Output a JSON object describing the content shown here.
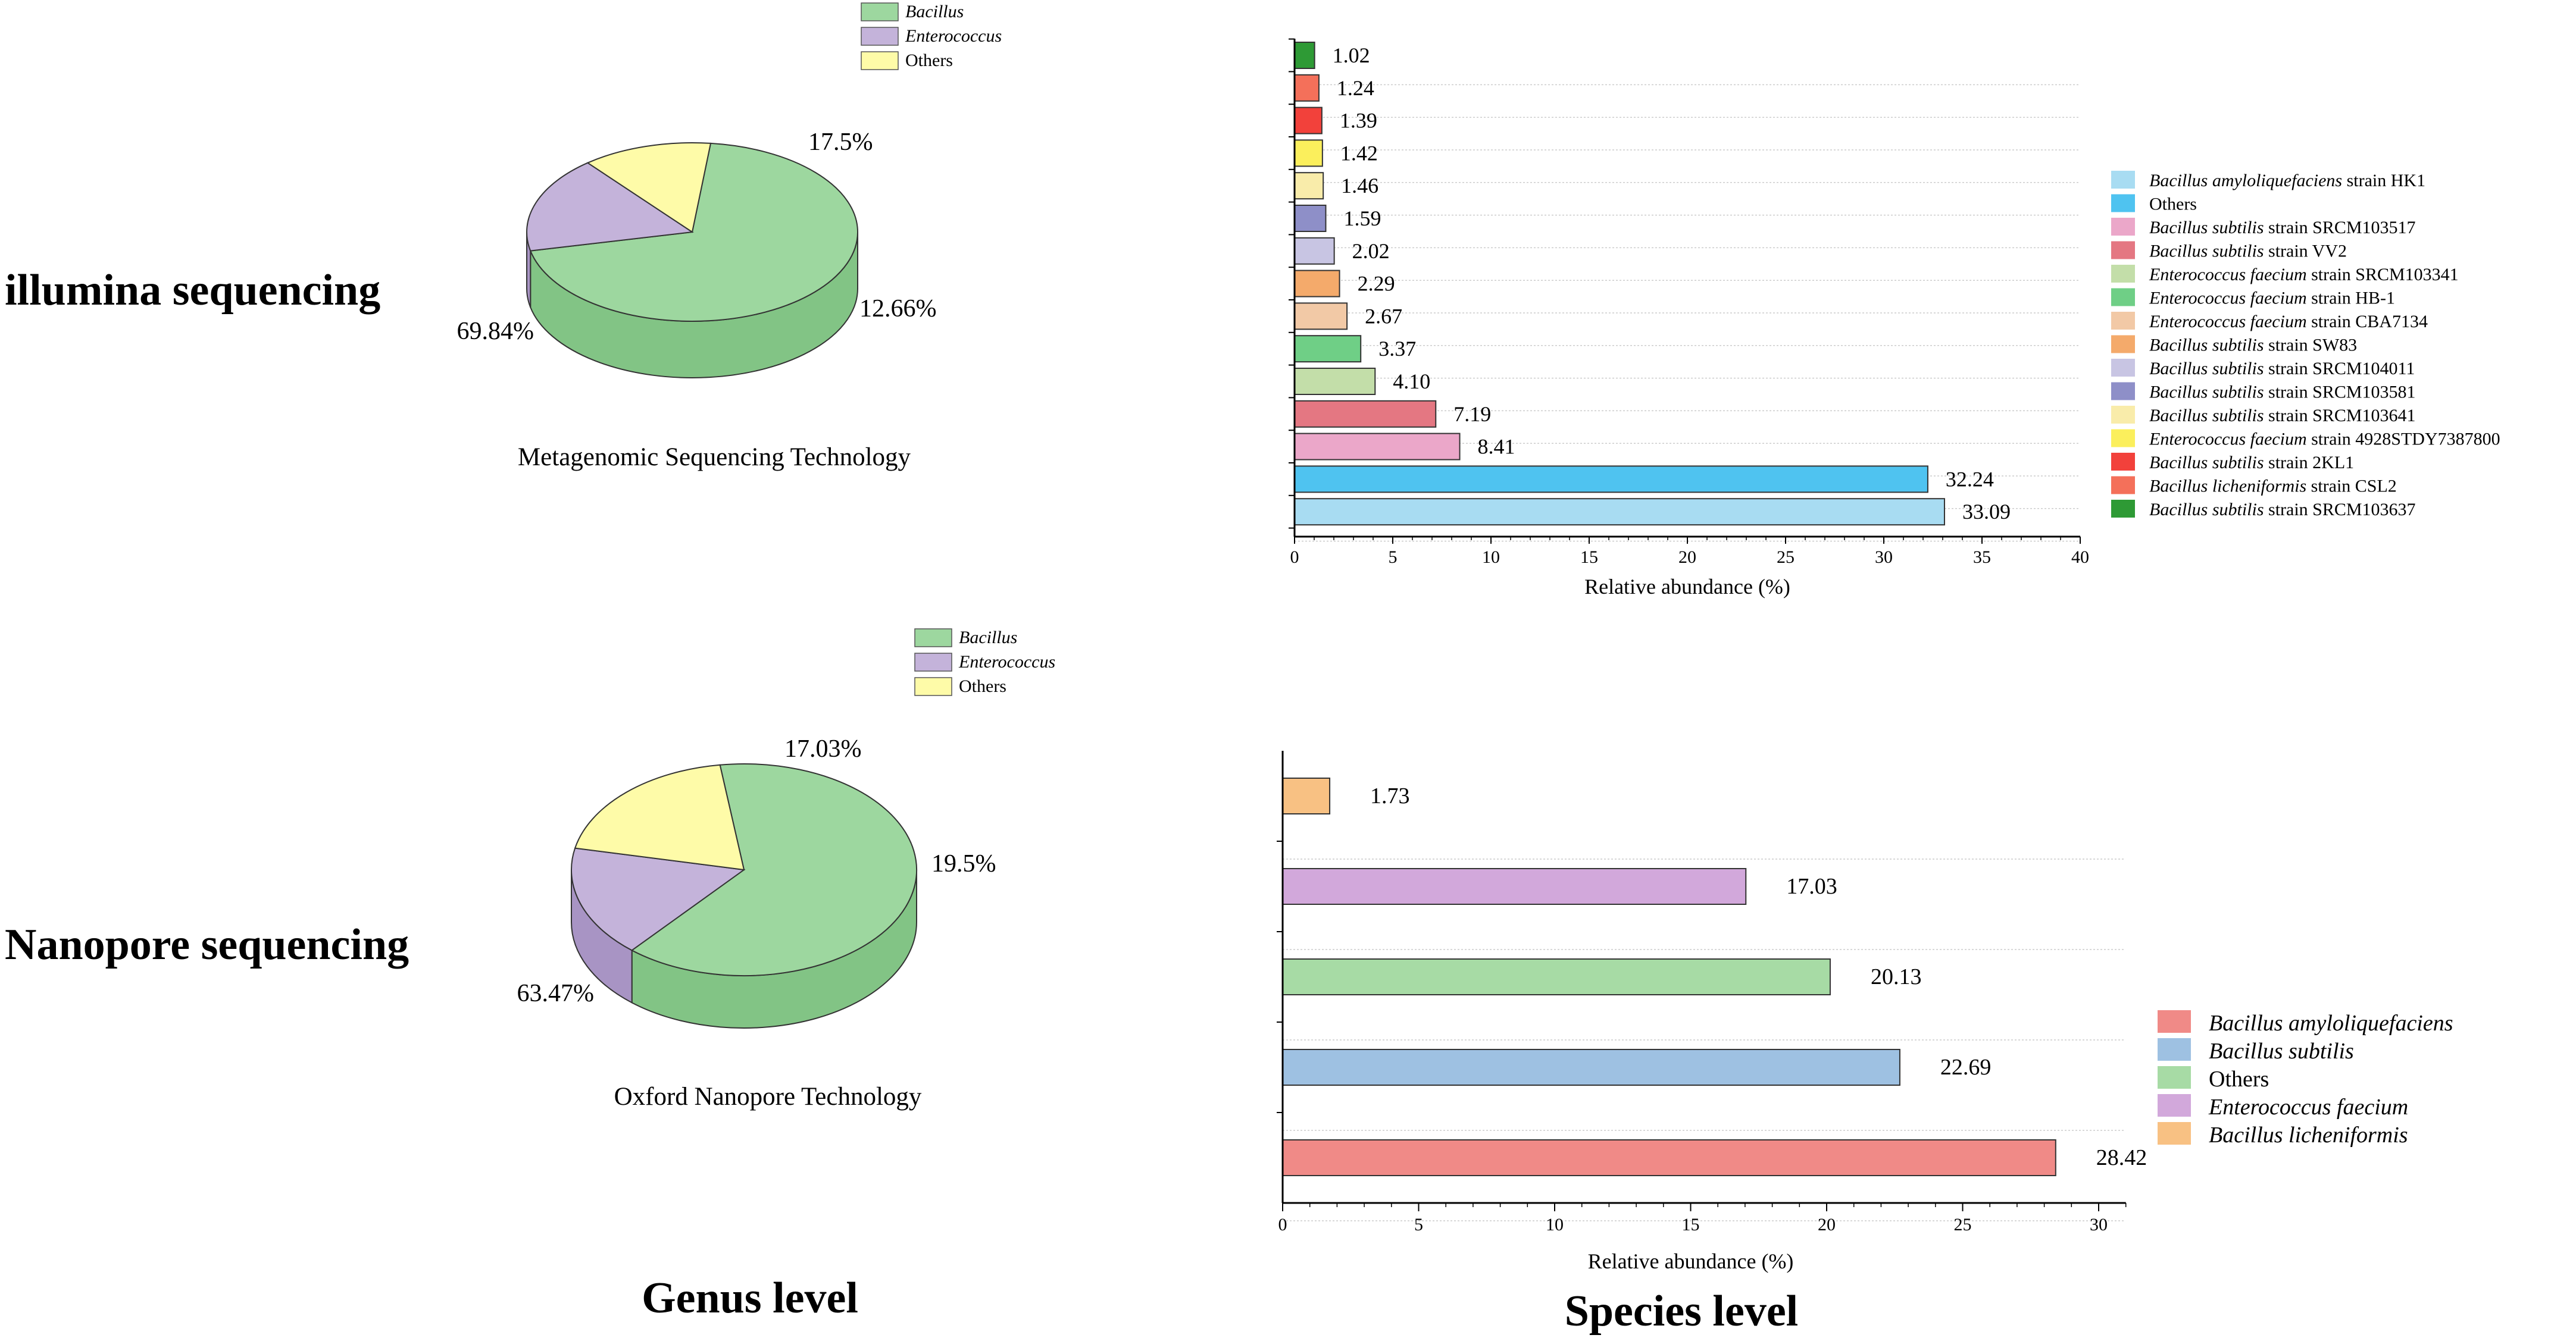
{
  "row_labels": {
    "illumina": "illumina sequencing",
    "nanopore": "Nanopore sequencing"
  },
  "footer_labels": {
    "genus": "Genus level",
    "species": "Species level"
  },
  "chart_data": [
    {
      "type": "pie",
      "title": "",
      "caption": "Metagenomic Sequencing Technology",
      "slices": [
        {
          "name": "Bacillus",
          "value": 69.84,
          "label": "69.84%",
          "italic": true,
          "color": "#9dd79f"
        },
        {
          "name": "Enterococcus",
          "value": 17.5,
          "label": "17.5%",
          "italic": true,
          "color": "#c4b3da"
        },
        {
          "name": "Others",
          "value": 12.66,
          "label": "12.66%",
          "italic": false,
          "color": "#fefba8"
        }
      ],
      "side_colors": [
        "#82c485",
        "#a894c4",
        "#f0ec83"
      ]
    },
    {
      "type": "bar",
      "orientation": "horizontal",
      "xlabel": "Relative abundance (%)",
      "xlim": [
        0,
        40
      ],
      "xticks": [
        0,
        5,
        10,
        15,
        20,
        25,
        30,
        35,
        40
      ],
      "legend_position": "right",
      "series": [
        {
          "species": "Bacillus amyloliquefaciens",
          "suffix": " strain HK1",
          "value": 33.09,
          "label": "33.09",
          "color": "#a8dcf2"
        },
        {
          "species": "",
          "suffix": "Others",
          "value": 32.24,
          "label": "32.24",
          "color": "#4fc3f0"
        },
        {
          "species": "Bacillus subtilis",
          "suffix": " strain SRCM103517",
          "value": 8.41,
          "label": "8.41",
          "color": "#eba7c9"
        },
        {
          "species": "Bacillus subtilis",
          "suffix": " strain VV2",
          "value": 7.19,
          "label": "7.19",
          "color": "#e47782"
        },
        {
          "species": "Enterococcus faecium",
          "suffix": " strain SRCM103341",
          "value": 4.1,
          "label": "4.10",
          "color": "#c3dea9"
        },
        {
          "species": "Enterococcus faecium",
          "suffix": " strain HB-1",
          "value": 3.37,
          "label": "3.37",
          "color": "#6fcf86"
        },
        {
          "species": "Enterococcus faecium",
          "suffix": " strain CBA7134",
          "value": 2.67,
          "label": "2.67",
          "color": "#f2c9a6"
        },
        {
          "species": "Bacillus subtilis",
          "suffix": " strain SW83",
          "value": 2.29,
          "label": "2.29",
          "color": "#f4aa6b"
        },
        {
          "species": "Bacillus subtilis",
          "suffix": " strain SRCM104011",
          "value": 2.02,
          "label": "2.02",
          "color": "#c8c5e3"
        },
        {
          "species": "Bacillus subtilis",
          "suffix": " strain SRCM103581",
          "value": 1.59,
          "label": "1.59",
          "color": "#8e8fc8"
        },
        {
          "species": "Bacillus subtilis",
          "suffix": " strain SRCM103641",
          "value": 1.46,
          "label": "1.46",
          "color": "#f9ecaa"
        },
        {
          "species": "Enterococcus faecium",
          "suffix": " strain 4928STDY7387800",
          "value": 1.42,
          "label": "1.42",
          "color": "#fbef5c"
        },
        {
          "species": "Bacillus subtilis",
          "suffix": " strain 2KL1",
          "value": 1.39,
          "label": "1.39",
          "color": "#f2413b"
        },
        {
          "species": "Bacillus licheniformis",
          "suffix": " strain CSL2",
          "value": 1.24,
          "label": "1.24",
          "color": "#f4705a"
        },
        {
          "species": "Bacillus subtilis",
          "suffix": " strain SRCM103637",
          "value": 1.02,
          "label": "1.02",
          "color": "#2e9a35"
        }
      ]
    },
    {
      "type": "pie",
      "title": "",
      "caption": "Oxford Nanopore Technology",
      "slices": [
        {
          "name": "Bacillus",
          "value": 63.47,
          "label": "63.47%",
          "italic": true,
          "color": "#9dd79f"
        },
        {
          "name": "Enterococcus",
          "value": 17.03,
          "label": "17.03%",
          "italic": true,
          "color": "#c4b3da"
        },
        {
          "name": "Others",
          "value": 19.5,
          "label": "19.5%",
          "italic": false,
          "color": "#fefba8"
        }
      ],
      "side_colors": [
        "#82c485",
        "#a894c4",
        "#f0ec83"
      ]
    },
    {
      "type": "bar",
      "orientation": "horizontal",
      "xlabel": "Relative abundance (%)",
      "xlim": [
        0,
        31
      ],
      "xticks": [
        0,
        5,
        10,
        15,
        20,
        25,
        30
      ],
      "legend_position": "right",
      "series": [
        {
          "species": "Bacillus amyloliquefaciens",
          "value": 28.42,
          "label": "28.42",
          "color": "#f08a87",
          "italic": true
        },
        {
          "species": "Bacillus subtilis",
          "value": 22.69,
          "label": "22.69",
          "color": "#9ec1e2",
          "italic": true
        },
        {
          "species": "Others",
          "value": 20.13,
          "label": "20.13",
          "color": "#a7dba5",
          "italic": false
        },
        {
          "species": "Enterococcus faecium",
          "value": 17.03,
          "label": "17.03",
          "color": "#d2a8db",
          "italic": true
        },
        {
          "species": "Bacillus licheniformis",
          "value": 1.73,
          "label": "1.73",
          "color": "#f8c183",
          "italic": true
        }
      ]
    }
  ]
}
